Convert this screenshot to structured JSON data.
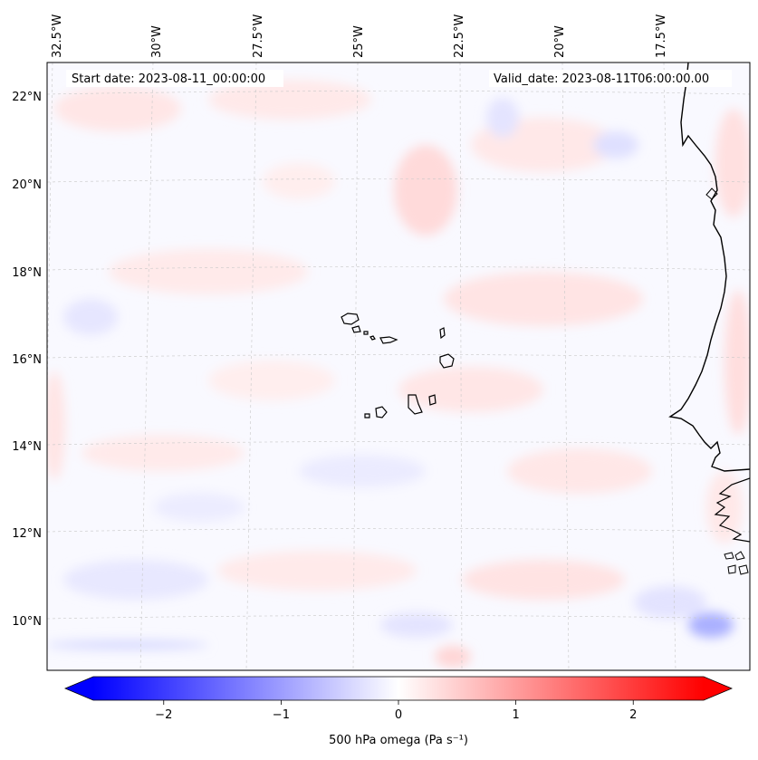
{
  "map": {
    "start_label": "Start date: 2023-08-11_00:00:00",
    "valid_label": "Valid_date: 2023-08-11T06:00:00.00",
    "lon_labels": [
      "32.5°W",
      "30°W",
      "27.5°W",
      "25°W",
      "22.5°W",
      "20°W",
      "17.5°W"
    ],
    "lat_labels": [
      "22°N",
      "20°N",
      "18°N",
      "16°N",
      "14°N",
      "12°N",
      "10°N"
    ],
    "field": "500 hPa omega",
    "units": "Pa s⁻¹"
  },
  "colorbar": {
    "label": "500 hPa omega (Pa s⁻¹)",
    "ticks": [
      "−2",
      "−1",
      "0",
      "1",
      "2"
    ],
    "tick_values": [
      -2,
      -1,
      0,
      1,
      2
    ],
    "range": [
      -2.6,
      2.6
    ],
    "cmap": "bwr",
    "extend": "both"
  },
  "colors": {
    "negative": "#0000ff",
    "zero": "#ffffff",
    "positive": "#ff0000",
    "coastline": "#000000",
    "gridline": "#bbbbbb"
  }
}
